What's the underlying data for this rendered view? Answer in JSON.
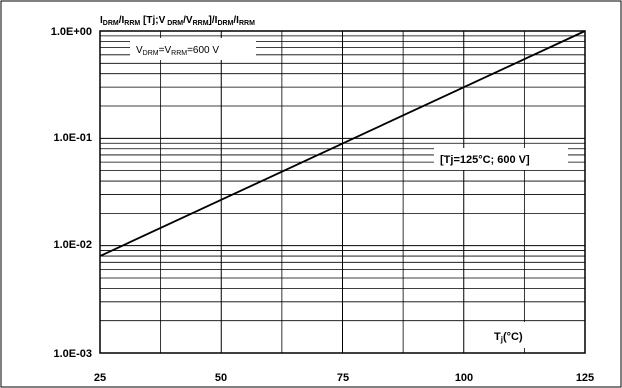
{
  "chart_data": {
    "type": "line",
    "title_main": "I",
    "title_sub1": "DRM",
    "title_sep1": "/I",
    "title_sub2": "RRM",
    "title_mid": " [Tj;V",
    "title_sub3": " DRM",
    "title_sep2": "/V",
    "title_sub4": "RRM",
    "title_tail": "]/I",
    "title_sub5": "DRM",
    "title_sep3": "/I",
    "title_sub6": "RRM",
    "x_ticks": [
      "25",
      "50",
      "75",
      "100",
      "125"
    ],
    "y_ticks": [
      "1.0E+00",
      "1.0E-01",
      "1.0E-02",
      "1.0E-03"
    ],
    "xlim": [
      25,
      125
    ],
    "ylim": [
      0.001,
      1
    ],
    "y_scale": "log",
    "grid": true,
    "xlabel_main": "T",
    "xlabel_sub": "j",
    "xlabel_tail": "(°C)",
    "condition_v1": "V",
    "condition_sub1": "DRM",
    "condition_eq": "=V",
    "condition_sub2": "RRM",
    "condition_value": "=600 V",
    "reference_label": "[Tj=125°C; 600 V]",
    "series": [
      {
        "x": [
          25,
          125
        ],
        "y": [
          0.008,
          1.0
        ]
      }
    ],
    "line_color": "#000000"
  }
}
